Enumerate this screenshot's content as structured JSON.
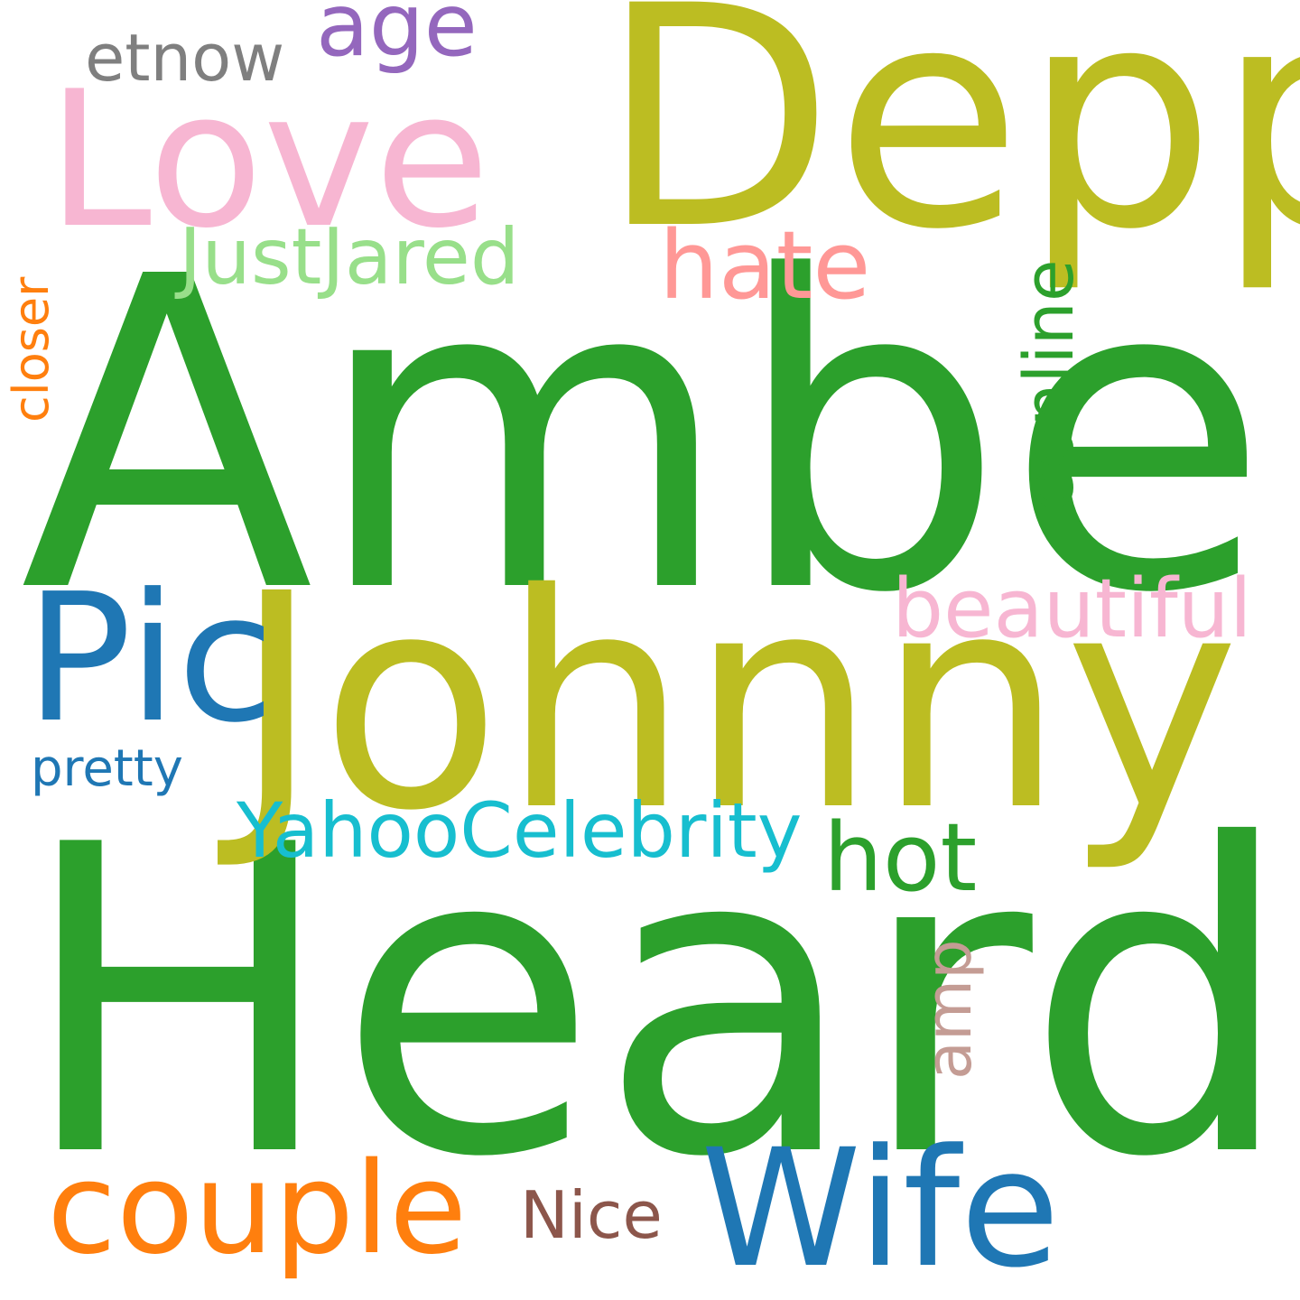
{
  "words": {
    "heard": {
      "text": "Heard",
      "color": "#2ca02c"
    },
    "amber": {
      "text": "Amber",
      "color": "#2ca02c"
    },
    "johnny": {
      "text": "Johnny",
      "color": "#bcbd22"
    },
    "depp": {
      "text": "Depp",
      "color": "#bcbd22"
    },
    "love": {
      "text": "Love",
      "color": "#f7b6d2"
    },
    "pic": {
      "text": "Pic",
      "color": "#1f77b4"
    },
    "wife": {
      "text": "Wife",
      "color": "#1f77b4"
    },
    "couple": {
      "text": "couple",
      "color": "#ff7f0e"
    },
    "yahoocelebrity": {
      "text": "YahooCelebrity",
      "color": "#17becf"
    },
    "hot": {
      "text": "hot",
      "color": "#2ca02c"
    },
    "eonline": {
      "text": "eonline",
      "color": "#2ca02c"
    },
    "hate": {
      "text": "hate",
      "color": "#ff9896"
    },
    "beautiful": {
      "text": "beautiful",
      "color": "#f7b6d2"
    },
    "justjared": {
      "text": "JustJared",
      "color": "#98df8a"
    },
    "age": {
      "text": "age",
      "color": "#9467bd"
    },
    "etnow": {
      "text": "etnow",
      "color": "#7f7f7f"
    },
    "nice": {
      "text": "Nice",
      "color": "#8c564b"
    },
    "amp": {
      "text": "amp",
      "color": "#c49c94"
    },
    "closer": {
      "text": "closer",
      "color": "#ff7f0e"
    },
    "pretty": {
      "text": "pretty",
      "color": "#1f77b4"
    }
  }
}
